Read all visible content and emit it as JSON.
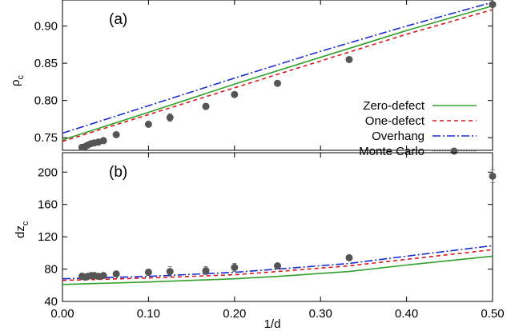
{
  "chart_data": [
    {
      "type": "line",
      "panel_label": "(a)",
      "ylabel": "ρ",
      "ylabel_sub": "c",
      "xlabel": "",
      "xlim": [
        0.0,
        0.5
      ],
      "ylim": [
        0.733,
        0.935
      ],
      "ytick_values": [
        0.75,
        0.8,
        0.85,
        0.9
      ],
      "ytick_labels": [
        "0.75",
        "0.80",
        "0.85",
        "0.90"
      ],
      "series": [
        {
          "name": "Zero-defect",
          "color": "#33a02c",
          "dash": "",
          "style": "line",
          "x": [
            0.0,
            0.1,
            0.2,
            0.3,
            0.4,
            0.5
          ],
          "y": [
            0.747,
            0.784,
            0.822,
            0.858,
            0.894,
            0.927
          ]
        },
        {
          "name": "One-defect",
          "color": "#d7191c",
          "dash": "5,4",
          "style": "line",
          "x": [
            0.0,
            0.1,
            0.2,
            0.3,
            0.4,
            0.5
          ],
          "y": [
            0.745,
            0.781,
            0.817,
            0.853,
            0.889,
            0.922
          ]
        },
        {
          "name": "Overhang",
          "color": "#1a2bd0",
          "dash": "10,3,2,3",
          "style": "line",
          "x": [
            0.0,
            0.1,
            0.2,
            0.3,
            0.4,
            0.5
          ],
          "y": [
            0.756,
            0.793,
            0.83,
            0.866,
            0.9,
            0.932
          ]
        },
        {
          "name": "Monte Carlo",
          "color": "#555555",
          "dash": "",
          "style": "points",
          "x": [
            0.0227,
            0.0263,
            0.0294,
            0.0333,
            0.037,
            0.0417,
            0.0476,
            0.0625,
            0.1,
            0.125,
            0.1667,
            0.2,
            0.25,
            0.3333,
            0.5
          ],
          "y": [
            0.737,
            0.738,
            0.74,
            0.742,
            0.743,
            0.744,
            0.746,
            0.754,
            0.768,
            0.777,
            0.792,
            0.808,
            0.823,
            0.855,
            0.929
          ],
          "yerr": [
            0,
            0,
            0,
            0,
            0,
            0,
            0,
            0,
            0,
            0.005,
            0.004,
            0.003,
            0,
            0,
            0
          ]
        }
      ],
      "legend_position": "bottom-right"
    },
    {
      "type": "line",
      "panel_label": "(b)",
      "ylabel": "dz",
      "ylabel_sub": "c",
      "xlabel": "1/d",
      "xlim": [
        0.0,
        0.5
      ],
      "ylim": [
        40,
        224
      ],
      "ytick_values": [
        40,
        80,
        120,
        160,
        200
      ],
      "ytick_labels": [
        "40",
        "80",
        "120",
        "160",
        "200"
      ],
      "xtick_values": [
        0.0,
        0.1,
        0.2,
        0.3,
        0.4,
        0.5
      ],
      "xtick_labels": [
        "0.00",
        "0.10",
        "0.20",
        "0.30",
        "0.40",
        "0.50"
      ],
      "series": [
        {
          "name": "Zero-defect",
          "color": "#33a02c",
          "dash": "",
          "style": "line",
          "x": [
            0.0,
            0.1,
            0.2,
            0.25,
            0.3333,
            0.4,
            0.5
          ],
          "y": [
            61,
            64,
            68,
            71,
            77,
            85,
            96
          ]
        },
        {
          "name": "One-defect",
          "color": "#d7191c",
          "dash": "5,4",
          "style": "line",
          "x": [
            0.0,
            0.1,
            0.2,
            0.25,
            0.3333,
            0.4,
            0.5
          ],
          "y": [
            66,
            69,
            73,
            77,
            84,
            92,
            104
          ]
        },
        {
          "name": "Overhang",
          "color": "#1a2bd0",
          "dash": "10,3,2,3",
          "style": "line",
          "x": [
            0.0,
            0.1,
            0.2,
            0.25,
            0.3333,
            0.4,
            0.5
          ],
          "y": [
            68,
            71,
            76,
            80,
            87,
            96,
            109
          ]
        },
        {
          "name": "Monte Carlo",
          "color": "#555555",
          "dash": "",
          "style": "points",
          "x": [
            0.0227,
            0.0263,
            0.0294,
            0.0333,
            0.037,
            0.0417,
            0.0476,
            0.0625,
            0.1,
            0.125,
            0.1667,
            0.2,
            0.25,
            0.3333,
            0.5
          ],
          "y": [
            71,
            70,
            71,
            72,
            72,
            71,
            72,
            74,
            76,
            77,
            78,
            82,
            84,
            94,
            195
          ],
          "yerr": [
            4,
            3,
            3,
            3,
            3,
            3,
            3,
            3,
            4,
            6,
            5,
            5,
            3,
            3,
            8
          ]
        }
      ]
    }
  ]
}
